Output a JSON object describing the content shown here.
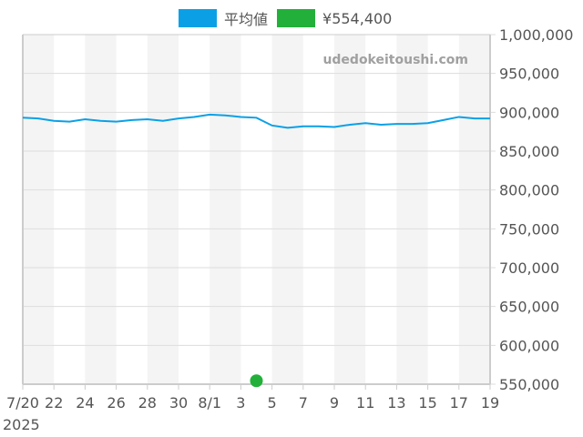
{
  "legend": {
    "items": [
      {
        "label": "平均値",
        "color": "#0ba0e6"
      },
      {
        "label": "¥554,400",
        "color": "#22b03a"
      }
    ]
  },
  "watermark": "udedokeitoushi.com",
  "colors": {
    "line": "#0ba0e6",
    "point": "#22b03a",
    "stripe": "#f4f4f4",
    "grid": "#dddddd",
    "axis": "#cccccc",
    "tick_text": "#555555",
    "watermark": "#a0a0a0"
  },
  "chart_data": {
    "type": "line",
    "title": "",
    "xlabel": "",
    "ylabel": "",
    "x_start": "2025-07-20",
    "x_end": "2025-08-19",
    "x_tick_labels": [
      "7/20",
      "22",
      "24",
      "26",
      "28",
      "30",
      "8/1",
      "3",
      "5",
      "7",
      "9",
      "11",
      "13",
      "15",
      "17",
      "19"
    ],
    "x_year_label": "2025",
    "y_tick_labels": [
      "550,000",
      "600,000",
      "650,000",
      "700,000",
      "750,000",
      "800,000",
      "850,000",
      "900,000",
      "950,000",
      "1,000,000"
    ],
    "ylim": [
      550000,
      1000000
    ],
    "grid": true,
    "legend_position": "top",
    "x": [
      "7/20",
      "7/21",
      "7/22",
      "7/23",
      "7/24",
      "7/25",
      "7/26",
      "7/27",
      "7/28",
      "7/29",
      "7/30",
      "7/31",
      "8/1",
      "8/2",
      "8/3",
      "8/4",
      "8/5",
      "8/6",
      "8/7",
      "8/8",
      "8/9",
      "8/10",
      "8/11",
      "8/12",
      "8/13",
      "8/14",
      "8/15",
      "8/16",
      "8/17",
      "8/18",
      "8/19"
    ],
    "series": [
      {
        "name": "平均値",
        "type": "line",
        "values": [
          893000,
          892000,
          889000,
          888000,
          891000,
          889000,
          888000,
          890000,
          891000,
          889000,
          892000,
          894000,
          897000,
          896000,
          894000,
          893000,
          883000,
          880000,
          882000,
          882000,
          881000,
          884000,
          886000,
          884000,
          885000,
          885000,
          886000,
          890000,
          894000,
          892000,
          892000
        ]
      },
      {
        "name": "¥554,400",
        "type": "scatter",
        "points": [
          {
            "x": "8/4",
            "y": 554400
          }
        ]
      }
    ]
  }
}
